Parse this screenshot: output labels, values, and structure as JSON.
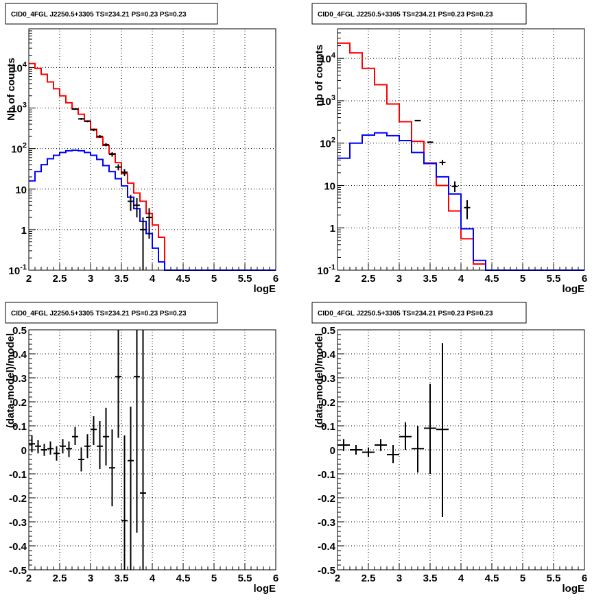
{
  "chart_data": [
    {
      "type": "line",
      "title": "CID0_4FGL J2250.5+3305 TS=234.21 PS=0.23 PS=0.23",
      "xlabel": "logE",
      "ylabel": "Nb of counts",
      "xlim": [
        2,
        6
      ],
      "ylim": [
        0.1,
        90000
      ],
      "yscale": "log",
      "grid": true,
      "x_ticks": [
        "2",
        "2.5",
        "3",
        "3.5",
        "4",
        "4.5",
        "5",
        "5.5",
        "6"
      ],
      "y_ticks": [
        {
          "value": 0.1,
          "base": "10",
          "exp": "-1"
        },
        {
          "value": 1,
          "text": "1"
        },
        {
          "value": 10,
          "text": "10"
        },
        {
          "value": 100,
          "base": "10",
          "exp": "2"
        },
        {
          "value": 1000,
          "base": "10",
          "exp": "3"
        },
        {
          "value": 10000,
          "base": "10",
          "exp": "4"
        }
      ],
      "bin_edges": [
        2.0,
        2.1,
        2.2,
        2.3,
        2.4,
        2.5,
        2.6,
        2.7,
        2.8,
        2.9,
        3.0,
        3.1,
        3.2,
        3.3,
        3.4,
        3.5,
        3.6,
        3.7,
        3.8,
        3.9,
        4.0,
        4.1,
        4.2,
        4.3,
        4.4,
        4.5,
        4.6,
        4.7,
        4.8,
        4.9,
        5.0,
        5.1,
        5.2,
        5.3,
        5.4,
        5.5,
        5.6,
        5.7,
        5.8,
        5.9,
        6.0
      ],
      "series": [
        {
          "color": "#ff0000",
          "style": "step",
          "values": [
            12500,
            9500,
            6800,
            4400,
            3000,
            2000,
            1350,
            950,
            700,
            480,
            300,
            190,
            120,
            75,
            45,
            24,
            14,
            8,
            5,
            2.5,
            1.3,
            0.65,
            0.1,
            0.1,
            0.1,
            0.1,
            0.1,
            0.1,
            0.1,
            0.1,
            0.1,
            0.1,
            0.1,
            0.1,
            0.1,
            0.1,
            0.1,
            0.1,
            0.1,
            0.1
          ]
        },
        {
          "color": "#0000ff",
          "style": "step",
          "values": [
            16,
            27,
            40,
            56,
            68,
            80,
            88,
            91,
            88,
            80,
            68,
            54,
            38,
            27,
            18,
            12,
            6.3,
            3.3,
            1.6,
            0.8,
            0.35,
            0.16,
            0.1,
            0.1,
            0.1,
            0.1,
            0.1,
            0.1,
            0.1,
            0.1,
            0.1,
            0.1,
            0.1,
            0.1,
            0.1,
            0.1,
            0.1,
            0.1,
            0.1,
            0.1
          ]
        },
        {
          "color": "#000000",
          "style": "errorbar",
          "points": [
            {
              "x": 2.75,
              "y": 940,
              "lo": 900,
              "hi": 980
            },
            {
              "x": 2.85,
              "y": 540,
              "lo": 510,
              "hi": 570
            },
            {
              "x": 2.95,
              "y": 470,
              "lo": 445,
              "hi": 495
            },
            {
              "x": 3.05,
              "y": 290,
              "lo": 270,
              "hi": 310
            },
            {
              "x": 3.15,
              "y": 200,
              "lo": 185,
              "hi": 215
            },
            {
              "x": 3.25,
              "y": 125,
              "lo": 113,
              "hi": 137
            },
            {
              "x": 3.35,
              "y": 72,
              "lo": 63,
              "hi": 81
            },
            {
              "x": 3.45,
              "y": 35,
              "lo": 29,
              "hi": 41
            },
            {
              "x": 3.55,
              "y": 26,
              "lo": 21,
              "hi": 31
            },
            {
              "x": 3.65,
              "y": 5,
              "lo": 2.9,
              "hi": 7.2
            },
            {
              "x": 3.75,
              "y": 4,
              "lo": 2.0,
              "hi": 6.0
            },
            {
              "x": 3.85,
              "y": 1,
              "lo": 0.1,
              "hi": 2.0
            },
            {
              "x": 3.95,
              "y": 2,
              "lo": 0.6,
              "hi": 3.4
            }
          ]
        }
      ]
    },
    {
      "type": "line",
      "title": "CID0_4FGL J2250.5+3305 TS=234.21 PS=0.23 PS=0.23",
      "xlabel": "logE",
      "ylabel": "nb of counts",
      "xlim": [
        2,
        6
      ],
      "ylim": [
        0.1,
        50000
      ],
      "yscale": "log",
      "grid": true,
      "x_ticks": [
        "2",
        "2.5",
        "3",
        "3.5",
        "4",
        "4.5",
        "5",
        "5.5",
        "6"
      ],
      "y_ticks": [
        {
          "value": 0.1,
          "base": "10",
          "exp": "-1"
        },
        {
          "value": 1,
          "text": "1"
        },
        {
          "value": 10,
          "text": "10"
        },
        {
          "value": 100,
          "base": "10",
          "exp": "2"
        },
        {
          "value": 1000,
          "base": "10",
          "exp": "3"
        },
        {
          "value": 10000,
          "base": "10",
          "exp": "4"
        }
      ],
      "bin_edges": [
        2.0,
        2.2,
        2.4,
        2.6,
        2.8,
        3.0,
        3.2,
        3.4,
        3.6,
        3.8,
        4.0,
        4.2,
        4.4,
        4.6,
        4.8,
        5.0,
        5.2,
        5.4,
        5.6,
        5.8,
        6.0
      ],
      "series": [
        {
          "color": "#ff0000",
          "style": "step",
          "values": [
            23000,
            13500,
            5800,
            2400,
            840,
            320,
            110,
            34,
            10,
            2.5,
            0.55,
            0.14,
            0.1,
            0.1,
            0.1,
            0.1,
            0.1,
            0.1,
            0.1,
            0.1
          ]
        },
        {
          "color": "#0000ff",
          "style": "step",
          "values": [
            44,
            100,
            155,
            175,
            150,
            115,
            60,
            33,
            16,
            6.3,
            0.95,
            0.17,
            0.1,
            0.1,
            0.1,
            0.1,
            0.1,
            0.1,
            0.1,
            0.1
          ]
        },
        {
          "color": "#000000",
          "style": "errorbar",
          "points": [
            {
              "x": 3.3,
              "y": 340,
              "lo": 330,
              "hi": 350
            },
            {
              "x": 3.5,
              "y": 105,
              "lo": 100,
              "hi": 110
            },
            {
              "x": 3.7,
              "y": 35,
              "lo": 30,
              "hi": 40
            },
            {
              "x": 3.9,
              "y": 9.5,
              "lo": 7.0,
              "hi": 12.5
            },
            {
              "x": 4.1,
              "y": 3,
              "lo": 1.6,
              "hi": 4.5
            }
          ]
        }
      ]
    },
    {
      "type": "scatter",
      "title": "CID0_4FGL J2250.5+3305 TS=234.21 PS=0.23 PS=0.23",
      "xlabel": "logE",
      "ylabel": "(data-model)/model",
      "xlim": [
        2,
        6
      ],
      "ylim": [
        -0.5,
        0.5
      ],
      "grid": true,
      "x_ticks": [
        "2",
        "2.5",
        "3",
        "3.5",
        "4",
        "4.5",
        "5",
        "5.5",
        "6"
      ],
      "y_ticks": [
        "-0.5",
        "-0.4",
        "-0.3",
        "-0.2",
        "-0.1",
        "0",
        "0.1",
        "0.2",
        "0.3",
        "0.4",
        "0.5"
      ],
      "y_tick_values": [
        -0.5,
        -0.4,
        -0.3,
        -0.2,
        -0.1,
        0,
        0.1,
        0.2,
        0.3,
        0.4,
        0.5
      ],
      "series": [
        {
          "color": "#000000",
          "style": "errorbar",
          "xerr": 0.05,
          "points": [
            {
              "x": 2.05,
              "y": 0.025,
              "lo": -0.01,
              "hi": 0.06
            },
            {
              "x": 2.15,
              "y": 0.015,
              "lo": -0.015,
              "hi": 0.04
            },
            {
              "x": 2.25,
              "y": 0.0,
              "lo": -0.025,
              "hi": 0.025
            },
            {
              "x": 2.35,
              "y": 0.005,
              "lo": -0.02,
              "hi": 0.035
            },
            {
              "x": 2.45,
              "y": -0.015,
              "lo": -0.045,
              "hi": 0.015
            },
            {
              "x": 2.55,
              "y": 0.015,
              "lo": -0.015,
              "hi": 0.045
            },
            {
              "x": 2.65,
              "y": 0.005,
              "lo": -0.03,
              "hi": 0.035
            },
            {
              "x": 2.75,
              "y": 0.055,
              "lo": 0.02,
              "hi": 0.095
            },
            {
              "x": 2.85,
              "y": -0.04,
              "lo": -0.09,
              "hi": 0.01
            },
            {
              "x": 2.95,
              "y": 0.015,
              "lo": -0.035,
              "hi": 0.065
            },
            {
              "x": 3.05,
              "y": 0.085,
              "lo": 0.02,
              "hi": 0.14
            },
            {
              "x": 3.15,
              "y": 0.015,
              "lo": -0.08,
              "hi": 0.12
            },
            {
              "x": 3.25,
              "y": 0.055,
              "lo": -0.065,
              "hi": 0.175
            },
            {
              "x": 3.35,
              "y": -0.075,
              "lo": -0.235,
              "hi": 0.085
            },
            {
              "x": 3.45,
              "y": 0.305,
              "lo": 0.05,
              "hi": 0.5
            },
            {
              "x": 3.55,
              "y": -0.295,
              "lo": -0.5,
              "hi": 0.06
            },
            {
              "x": 3.65,
              "y": -0.045,
              "lo": -0.5,
              "hi": 0.18
            },
            {
              "x": 3.75,
              "y": 0.305,
              "lo": -0.345,
              "hi": 0.5
            },
            {
              "x": 3.85,
              "y": -0.18,
              "lo": -0.5,
              "hi": 0.5
            }
          ]
        }
      ]
    },
    {
      "type": "scatter",
      "title": "CID0_4FGL J2250.5+3305 TS=234.21 PS=0.23 PS=0.23",
      "xlabel": "logE",
      "ylabel": "(data-model)/model",
      "xlim": [
        2,
        6
      ],
      "ylim": [
        -0.5,
        0.5
      ],
      "grid": true,
      "x_ticks": [
        "2",
        "2.5",
        "3",
        "3.5",
        "4",
        "4.5",
        "5",
        "5.5",
        "6"
      ],
      "y_ticks": [
        "-0.5",
        "-0.4",
        "-0.3",
        "-0.2",
        "-0.1",
        "0",
        "0.1",
        "0.2",
        "0.3",
        "0.4",
        "0.5"
      ],
      "y_tick_values": [
        -0.5,
        -0.4,
        -0.3,
        -0.2,
        -0.1,
        0,
        0.1,
        0.2,
        0.3,
        0.4,
        0.5
      ],
      "series": [
        {
          "color": "#000000",
          "style": "errorbar",
          "xerr": 0.1,
          "points": [
            {
              "x": 2.1,
              "y": 0.02,
              "lo": -0.005,
              "hi": 0.045
            },
            {
              "x": 2.3,
              "y": 0.0,
              "lo": -0.02,
              "hi": 0.02
            },
            {
              "x": 2.5,
              "y": -0.01,
              "lo": -0.03,
              "hi": 0.01
            },
            {
              "x": 2.7,
              "y": 0.02,
              "lo": -0.005,
              "hi": 0.045
            },
            {
              "x": 2.9,
              "y": -0.02,
              "lo": -0.055,
              "hi": 0.02
            },
            {
              "x": 3.1,
              "y": 0.055,
              "lo": 0.0,
              "hi": 0.115
            },
            {
              "x": 3.3,
              "y": 0.005,
              "lo": -0.095,
              "hi": 0.1
            },
            {
              "x": 3.5,
              "y": 0.09,
              "lo": -0.1,
              "hi": 0.275
            },
            {
              "x": 3.7,
              "y": 0.085,
              "lo": -0.28,
              "hi": 0.445
            }
          ]
        }
      ]
    }
  ]
}
